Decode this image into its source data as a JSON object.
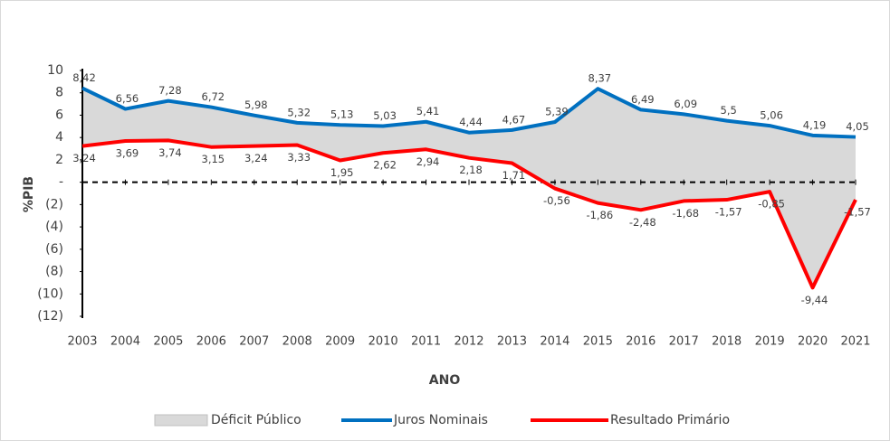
{
  "chart_data": {
    "type": "line",
    "x_label": "ANO",
    "y_label": "%PIB",
    "categories": [
      "2003",
      "2004",
      "2005",
      "2006",
      "2007",
      "2008",
      "2009",
      "2010",
      "2011",
      "2012",
      "2013",
      "2014",
      "2015",
      "2016",
      "2017",
      "2018",
      "2019",
      "2020",
      "2021"
    ],
    "band": {
      "name": "Déficit Público",
      "color": "#d9d9d9"
    },
    "series": [
      {
        "name": "Juros Nominais",
        "color": "#0070c0",
        "values": [
          8.42,
          6.56,
          7.28,
          6.72,
          5.98,
          5.32,
          5.13,
          5.03,
          5.41,
          4.44,
          4.67,
          5.39,
          8.37,
          6.49,
          6.09,
          5.5,
          5.06,
          4.19,
          4.05
        ],
        "value_labels": [
          "8,42",
          "6,56",
          "7,28",
          "6,72",
          "5,98",
          "5,32",
          "5,13",
          "5,03",
          "5,41",
          "4,44",
          "4,67",
          "5,39",
          "8,37",
          "6,49",
          "6,09",
          "5,5",
          "5,06",
          "4,19",
          "4,05"
        ]
      },
      {
        "name": "Resultado Primário",
        "color": "#ff0000",
        "values": [
          3.24,
          3.69,
          3.74,
          3.15,
          3.24,
          3.33,
          1.95,
          2.62,
          2.94,
          2.18,
          1.71,
          -0.56,
          -1.86,
          -2.48,
          -1.68,
          -1.57,
          -0.85,
          -9.44,
          -1.57
        ],
        "value_labels": [
          "3,24",
          "3,69",
          "3,74",
          "3,15",
          "3,24",
          "3,33",
          "1,95",
          "2,62",
          "2,94",
          "2,18",
          "1,71",
          "-0,56",
          "-1,86",
          "-2,48",
          "-1,68",
          "-1,57",
          "-0,85",
          "-9,44",
          "-1,57"
        ]
      }
    ],
    "ylim": [
      -12,
      10
    ],
    "yticks": [
      {
        "value": -12,
        "label": "(12)"
      },
      {
        "value": -10,
        "label": "(10)"
      },
      {
        "value": -8,
        "label": "(8)"
      },
      {
        "value": -6,
        "label": "(6)"
      },
      {
        "value": -4,
        "label": "(4)"
      },
      {
        "value": -2,
        "label": "(2)"
      },
      {
        "value": 0,
        "label": "-"
      },
      2,
      4,
      6,
      8,
      10
    ],
    "zero_line": true
  }
}
